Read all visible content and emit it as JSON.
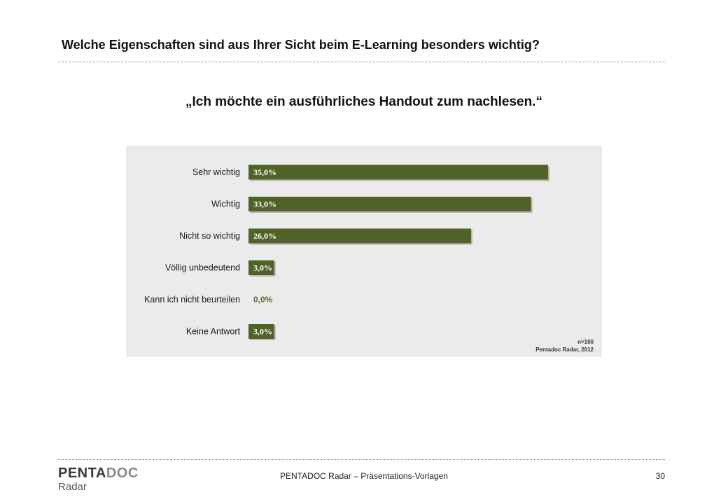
{
  "header": {
    "title": "Welche Eigenschaften sind aus Ihrer Sicht beim E-Learning besonders wichtig?"
  },
  "quote": "„Ich möchte ein ausführliches Handout zum nachlesen.“",
  "chart_data": {
    "type": "bar",
    "orientation": "horizontal",
    "categories": [
      "Sehr wichtig",
      "Wichtig",
      "Nicht so wichtig",
      "Völlig unbedeutend",
      "Kann ich nicht beurteilen",
      "Keine Antwort"
    ],
    "values": [
      35.0,
      33.0,
      26.0,
      3.0,
      0.0,
      3.0
    ],
    "value_labels": [
      "35,0%",
      "33,0%",
      "26,0%",
      "3,0%",
      "0,0%",
      "3,0%"
    ],
    "xlim": [
      0,
      35
    ],
    "grid": false,
    "bar_color": "#4f6228",
    "panel_color": "#ebebeb",
    "source_lines": [
      "n=100",
      "Pentadoc Radar, 2012"
    ]
  },
  "footer": {
    "logo_main_a": "PENTA",
    "logo_main_b": "DOC",
    "logo_sub": "Radar",
    "text": "PENTADOC Radar – Präsentations-Vorlagen",
    "page": "30"
  }
}
